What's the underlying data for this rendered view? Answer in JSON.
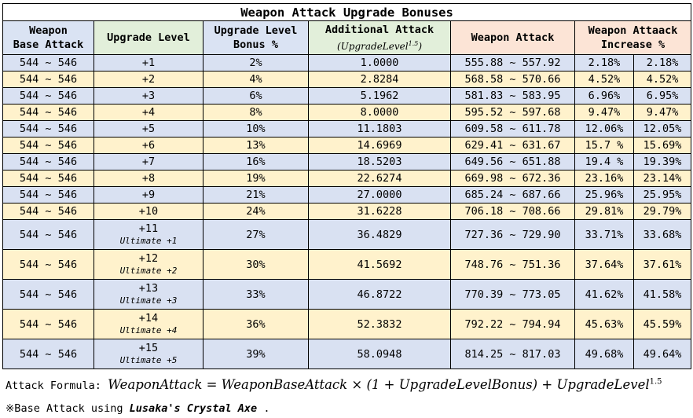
{
  "title": "Weapon Attack Upgrade Bonuses",
  "headers": {
    "base_attack": [
      "Weapon",
      "Base Attack"
    ],
    "upgrade_level": "Upgrade Level",
    "bonus": [
      "Upgrade Level",
      "Bonus %"
    ],
    "additional": "Additional Attack",
    "additional_sub": "(UpgradeLevel",
    "additional_sub_exp": "1.5",
    "additional_sub_close": ")",
    "weapon_attack": "Weapon Attack",
    "increase": [
      "Weapon Attaack",
      "Increase %"
    ]
  },
  "rows": [
    {
      "base": "544 ~ 546",
      "level": "+1",
      "ultimate": "",
      "bonus": "2%",
      "additional": "1.0000",
      "attack": "555.88 ~ 557.92",
      "inc_a": "2.18%",
      "inc_b": "2.18%"
    },
    {
      "base": "544 ~ 546",
      "level": "+2",
      "ultimate": "",
      "bonus": "4%",
      "additional": "2.8284",
      "attack": "568.58 ~ 570.66",
      "inc_a": "4.52%",
      "inc_b": "4.52%"
    },
    {
      "base": "544 ~ 546",
      "level": "+3",
      "ultimate": "",
      "bonus": "6%",
      "additional": "5.1962",
      "attack": "581.83 ~ 583.95",
      "inc_a": "6.96%",
      "inc_b": "6.95%"
    },
    {
      "base": "544 ~ 546",
      "level": "+4",
      "ultimate": "",
      "bonus": "8%",
      "additional": "8.0000",
      "attack": "595.52 ~ 597.68",
      "inc_a": "9.47%",
      "inc_b": "9.47%"
    },
    {
      "base": "544 ~ 546",
      "level": "+5",
      "ultimate": "",
      "bonus": "10%",
      "additional": "11.1803",
      "attack": "609.58 ~ 611.78",
      "inc_a": "12.06%",
      "inc_b": "12.05%"
    },
    {
      "base": "544 ~ 546",
      "level": "+6",
      "ultimate": "",
      "bonus": "13%",
      "additional": "14.6969",
      "attack": "629.41 ~ 631.67",
      "inc_a": "15.7 %",
      "inc_b": "15.69%"
    },
    {
      "base": "544 ~ 546",
      "level": "+7",
      "ultimate": "",
      "bonus": "16%",
      "additional": "18.5203",
      "attack": "649.56 ~ 651.88",
      "inc_a": "19.4 %",
      "inc_b": "19.39%"
    },
    {
      "base": "544 ~ 546",
      "level": "+8",
      "ultimate": "",
      "bonus": "19%",
      "additional": "22.6274",
      "attack": "669.98 ~ 672.36",
      "inc_a": "23.16%",
      "inc_b": "23.14%"
    },
    {
      "base": "544 ~ 546",
      "level": "+9",
      "ultimate": "",
      "bonus": "21%",
      "additional": "27.0000",
      "attack": "685.24 ~ 687.66",
      "inc_a": "25.96%",
      "inc_b": "25.95%"
    },
    {
      "base": "544 ~ 546",
      "level": "+10",
      "ultimate": "",
      "bonus": "24%",
      "additional": "31.6228",
      "attack": "706.18 ~ 708.66",
      "inc_a": "29.81%",
      "inc_b": "29.79%"
    },
    {
      "base": "544 ~ 546",
      "level": "+11",
      "ultimate": "Ultimate +1",
      "bonus": "27%",
      "additional": "36.4829",
      "attack": "727.36 ~ 729.90",
      "inc_a": "33.71%",
      "inc_b": "33.68%"
    },
    {
      "base": "544 ~ 546",
      "level": "+12",
      "ultimate": "Ultimate +2",
      "bonus": "30%",
      "additional": "41.5692",
      "attack": "748.76 ~ 751.36",
      "inc_a": "37.64%",
      "inc_b": "37.61%"
    },
    {
      "base": "544 ~ 546",
      "level": "+13",
      "ultimate": "Ultimate +3",
      "bonus": "33%",
      "additional": "46.8722",
      "attack": "770.39 ~ 773.05",
      "inc_a": "41.62%",
      "inc_b": "41.58%"
    },
    {
      "base": "544 ~ 546",
      "level": "+14",
      "ultimate": "Ultimate +4",
      "bonus": "36%",
      "additional": "52.3832",
      "attack": "792.22 ~ 794.94",
      "inc_a": "45.63%",
      "inc_b": "45.59%"
    },
    {
      "base": "544 ~ 546",
      "level": "+15",
      "ultimate": "Ultimate +5",
      "bonus": "39%",
      "additional": "58.0948",
      "attack": "814.25 ~ 817.03",
      "inc_a": "49.68%",
      "inc_b": "49.64%"
    }
  ],
  "formula": {
    "label": "Attack Formula:",
    "expression": "WeaponAttack = WeaponBaseAttack × (1 + UpgradeLevelBonus) + UpgradeLevel",
    "exponent": "1.5"
  },
  "note": {
    "prefix": "※Base Attack using ",
    "weapon": "Lusaka's Crystal Axe",
    "suffix": " ."
  },
  "colors": {
    "header_blue": "#dae3f3",
    "header_green": "#e2efda",
    "header_orange": "#fce4d6",
    "row_blue": "#d9e1f2",
    "row_yellow": "#fff2cc"
  }
}
